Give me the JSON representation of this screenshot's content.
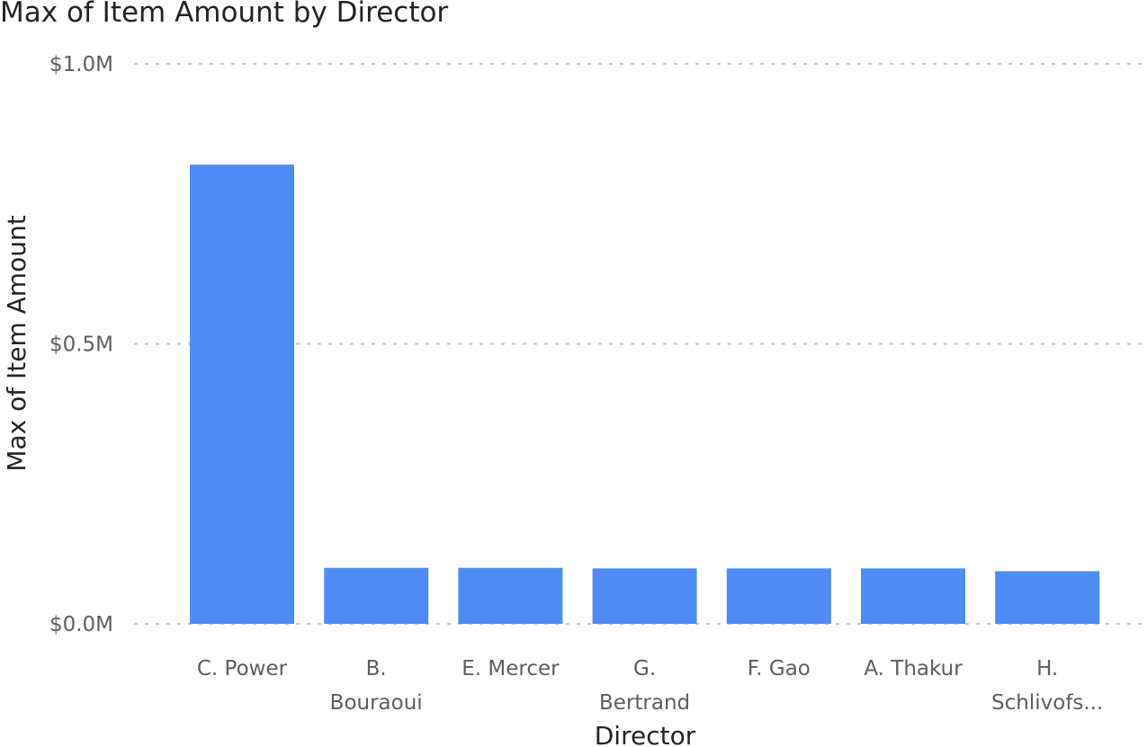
{
  "title": "Max of Item Amount by Director",
  "chart_data": {
    "type": "bar",
    "title": "Max of Item Amount by Director",
    "xlabel": "Director",
    "ylabel": "Max of Item Amount",
    "categories": [
      "C. Power",
      "B. Bouraoui",
      "E. Mercer",
      "G. Bertrand",
      "F. Gao",
      "A. Thakur",
      "H. Schlivofs..."
    ],
    "category_lines": [
      [
        "C. Power"
      ],
      [
        "B.",
        "Bouraoui"
      ],
      [
        "E. Mercer"
      ],
      [
        "G.",
        "Bertrand"
      ],
      [
        "F. Gao"
      ],
      [
        "A. Thakur"
      ],
      [
        "H.",
        "Schlivofs..."
      ]
    ],
    "values": [
      820000,
      100000,
      100000,
      99000,
      99000,
      99000,
      94000
    ],
    "ylim": [
      0,
      1000000
    ],
    "y_ticks": [
      0,
      500000,
      1000000
    ],
    "y_tick_labels": [
      "$0.0M",
      "$0.5M",
      "$1.0M"
    ],
    "grid": true,
    "bar_color": "#4E8BF5",
    "grid_color": "#C8C6C4"
  }
}
